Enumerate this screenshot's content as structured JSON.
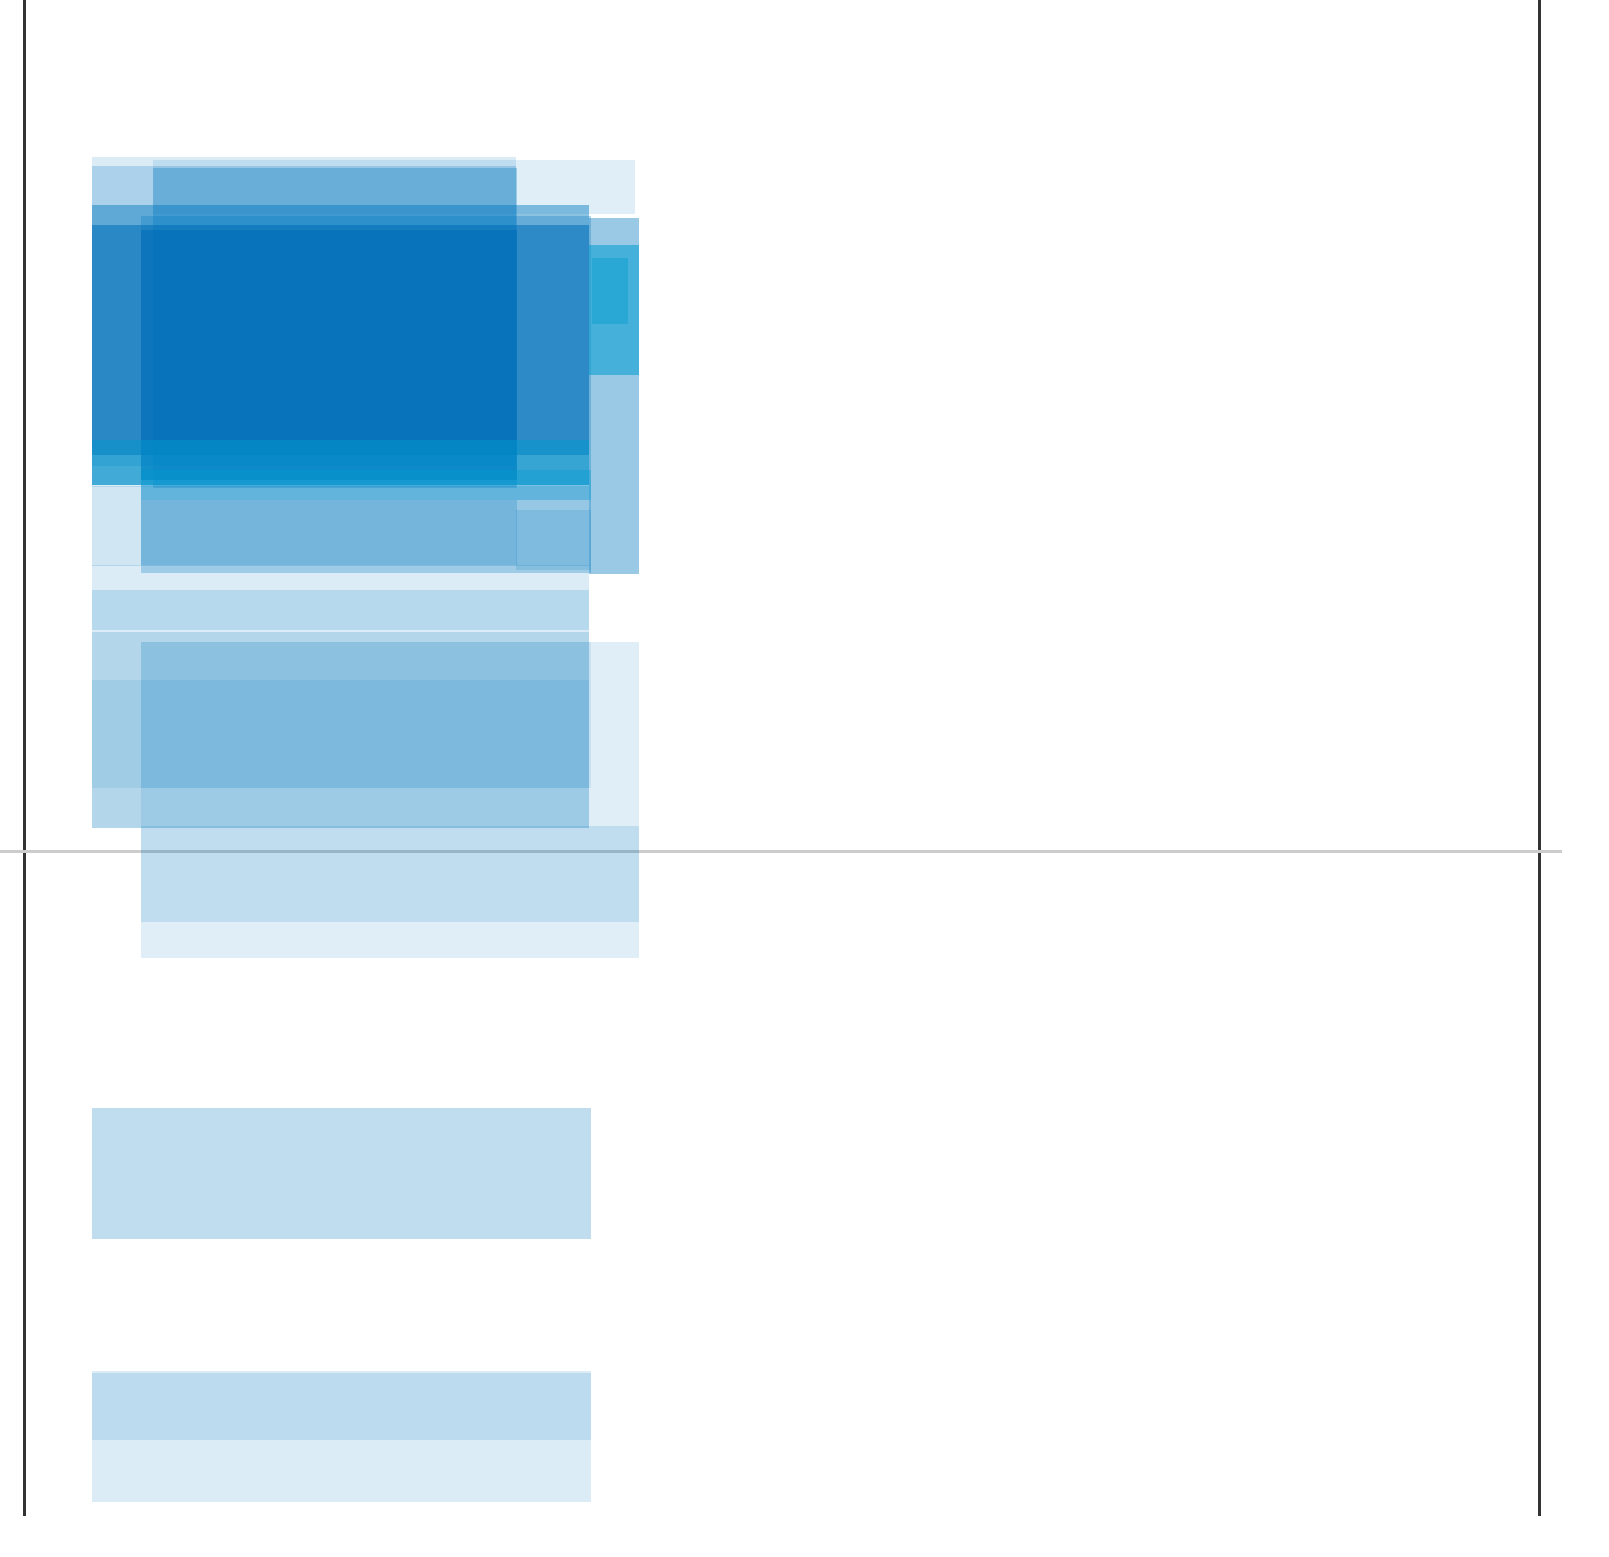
{
  "diagram": {
    "baseline_color": "#cccccc",
    "frame_color": "#333333",
    "band_color": "#0077be",
    "deep_band_color": "#006db8",
    "accent_band_color": "#009bd0",
    "light_band_color": "#a6d2e8",
    "background_color": "#ffffff"
  }
}
